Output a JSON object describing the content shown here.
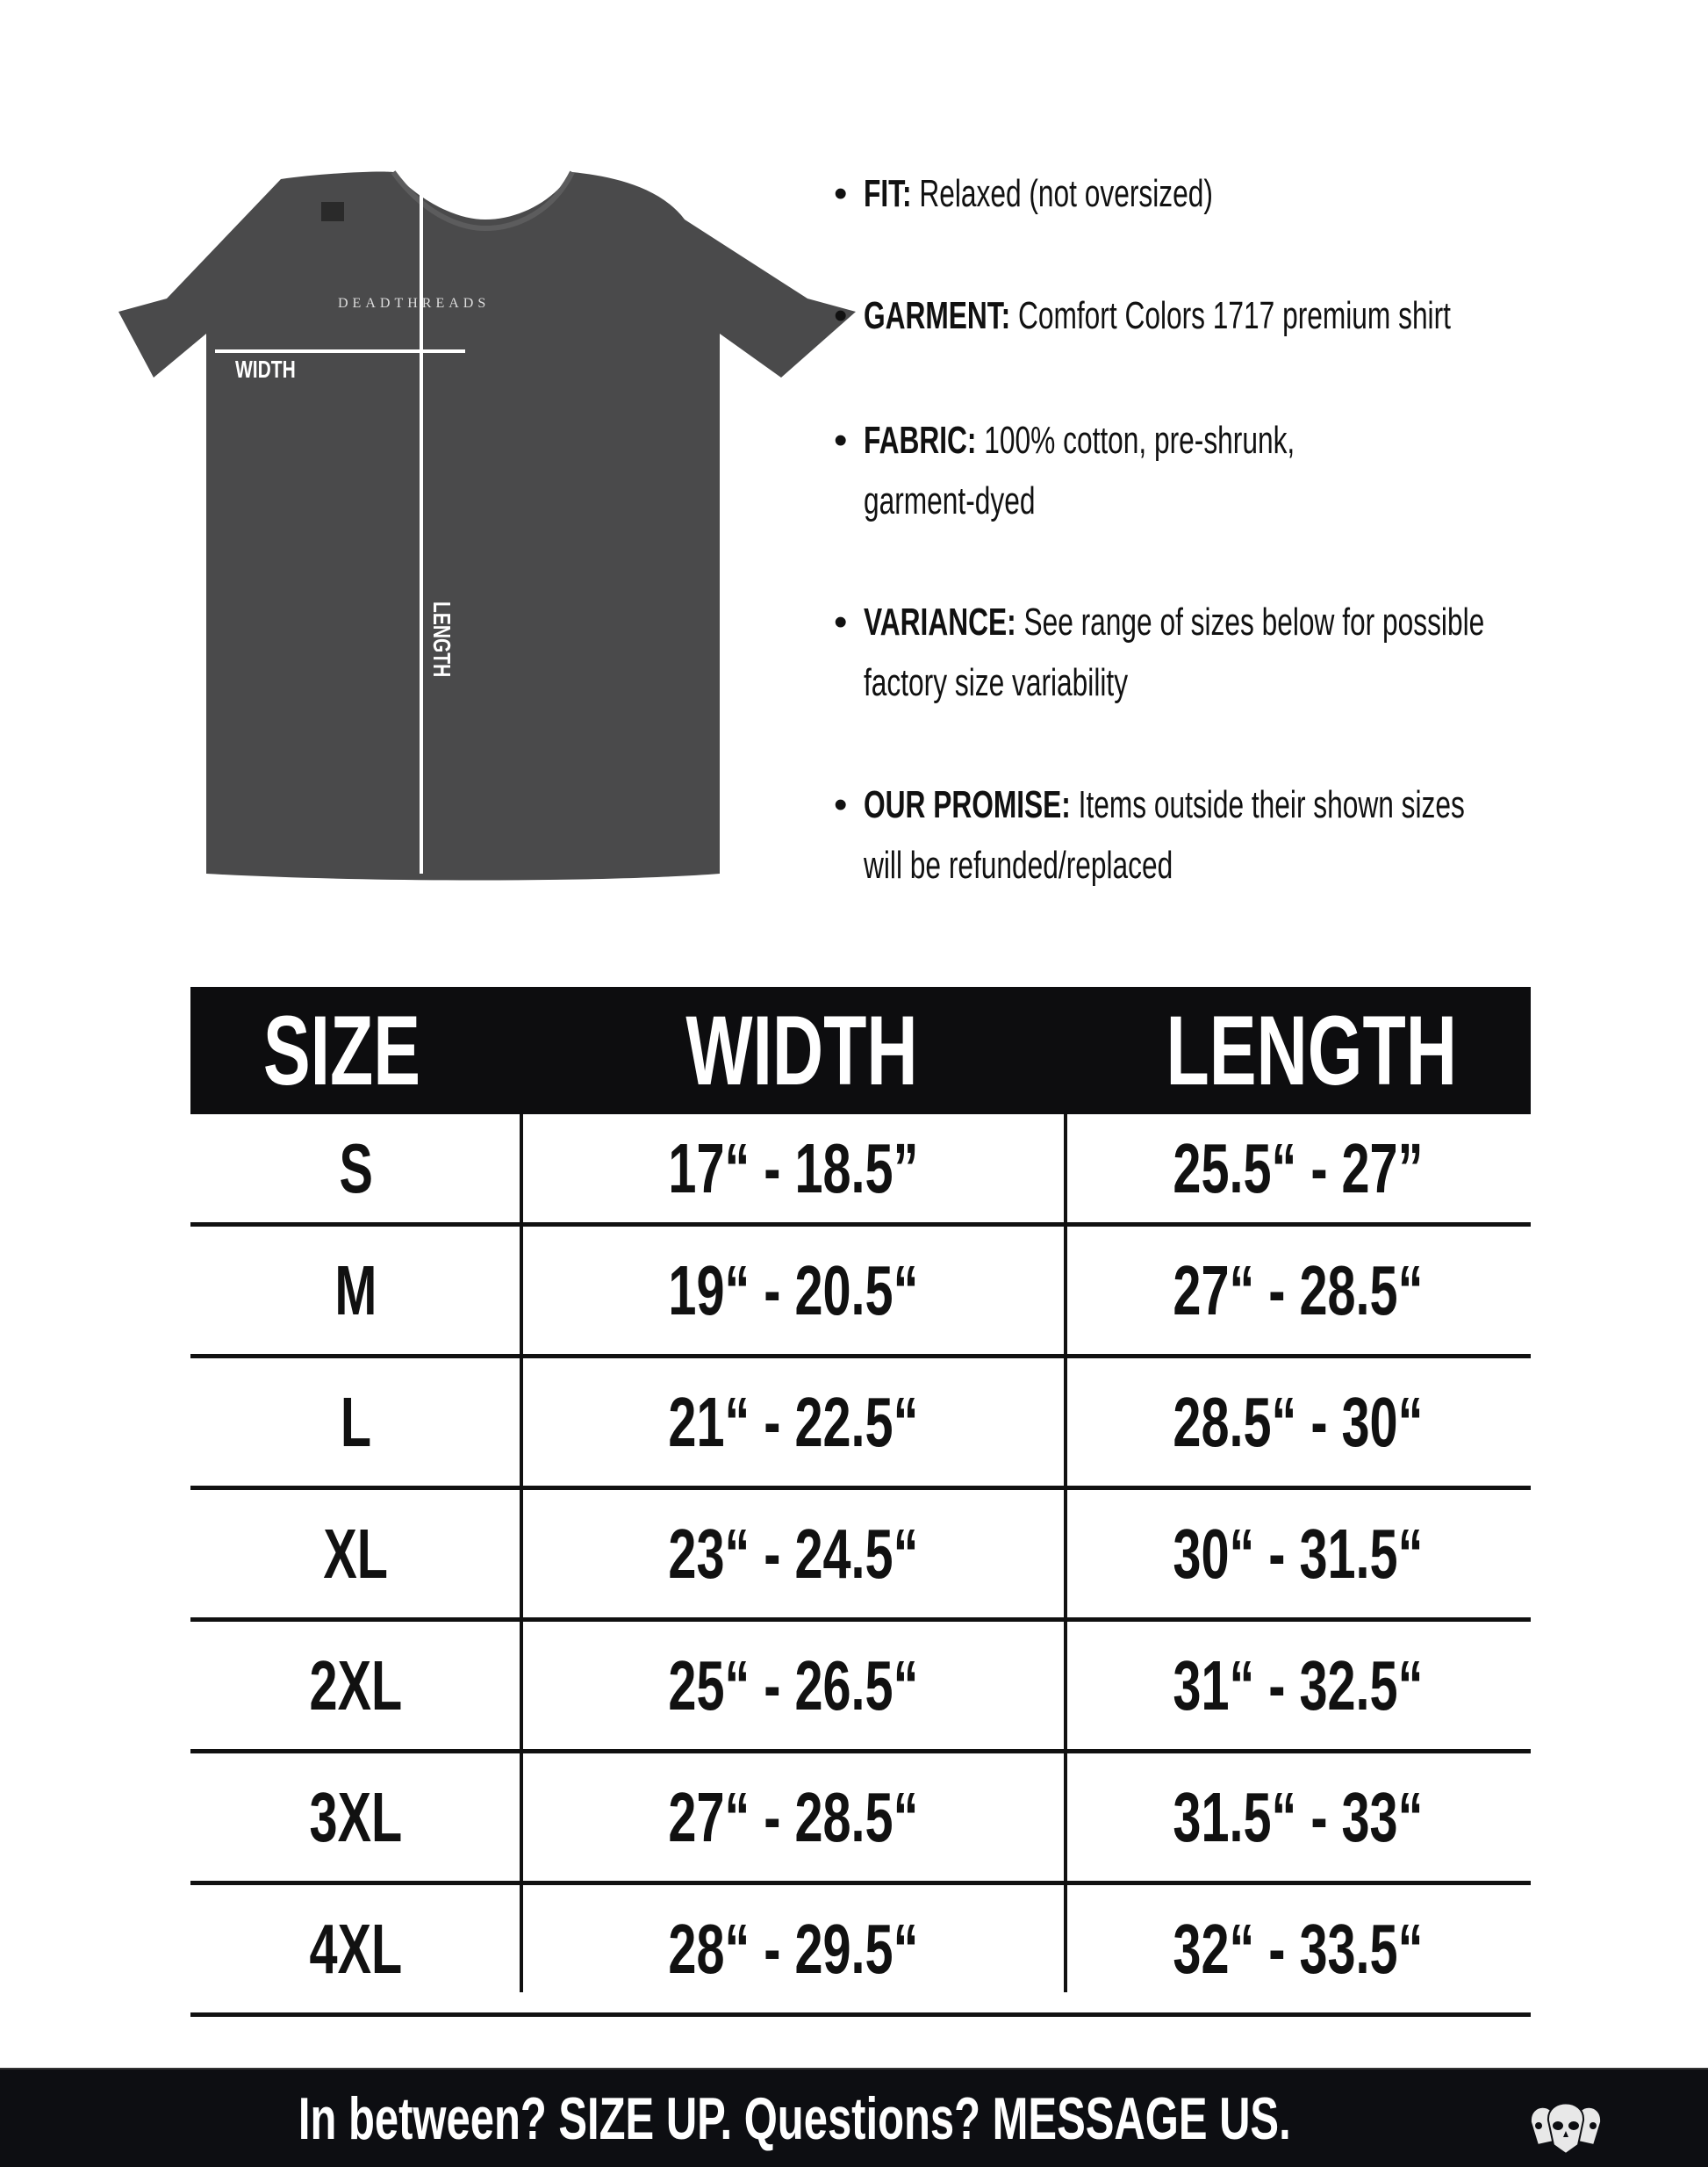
{
  "shirt": {
    "brand_print": "DEADTHREADS",
    "width_label": "WIDTH",
    "length_label": "LENGTH",
    "color": "#4a4a4b"
  },
  "bullets": [
    {
      "key": "FIT:",
      "text": " Relaxed (not oversized)",
      "text2": ""
    },
    {
      "key": "GARMENT:",
      "text": " Comfort Colors 1717 premium shirt",
      "text2": ""
    },
    {
      "key": "FABRIC:",
      "text": " 100% cotton, pre-shrunk,",
      "text2": "garment-dyed"
    },
    {
      "key": "VARIANCE:",
      "text": " See range of sizes below for possible",
      "text2": "factory size variability"
    },
    {
      "key": "OUR PROMISE:",
      "text": " Items outside their shown sizes",
      "text2": "will be refunded/replaced"
    }
  ],
  "table": {
    "headers": [
      "SIZE",
      "WIDTH",
      "LENGTH"
    ],
    "rows": [
      [
        "S",
        "17“ - 18.5”",
        "25.5“ - 27”"
      ],
      [
        "M",
        "19“ - 20.5“",
        "27“ - 28.5“"
      ],
      [
        "L",
        "21“ - 22.5“",
        "28.5“ - 30“"
      ],
      [
        "XL",
        "23“ - 24.5“",
        "30“ - 31.5“"
      ],
      [
        "2XL",
        "25“ - 26.5“",
        "31“ - 32.5“"
      ],
      [
        "3XL",
        "27“ - 28.5“",
        "31.5“ - 33“"
      ],
      [
        "4XL",
        "28“ - 29.5“",
        "32“ - 33.5“"
      ]
    ]
  },
  "footer": {
    "text": "In between? SIZE UP. Questions? MESSAGE US.",
    "logo": "three-skulls-logo"
  }
}
